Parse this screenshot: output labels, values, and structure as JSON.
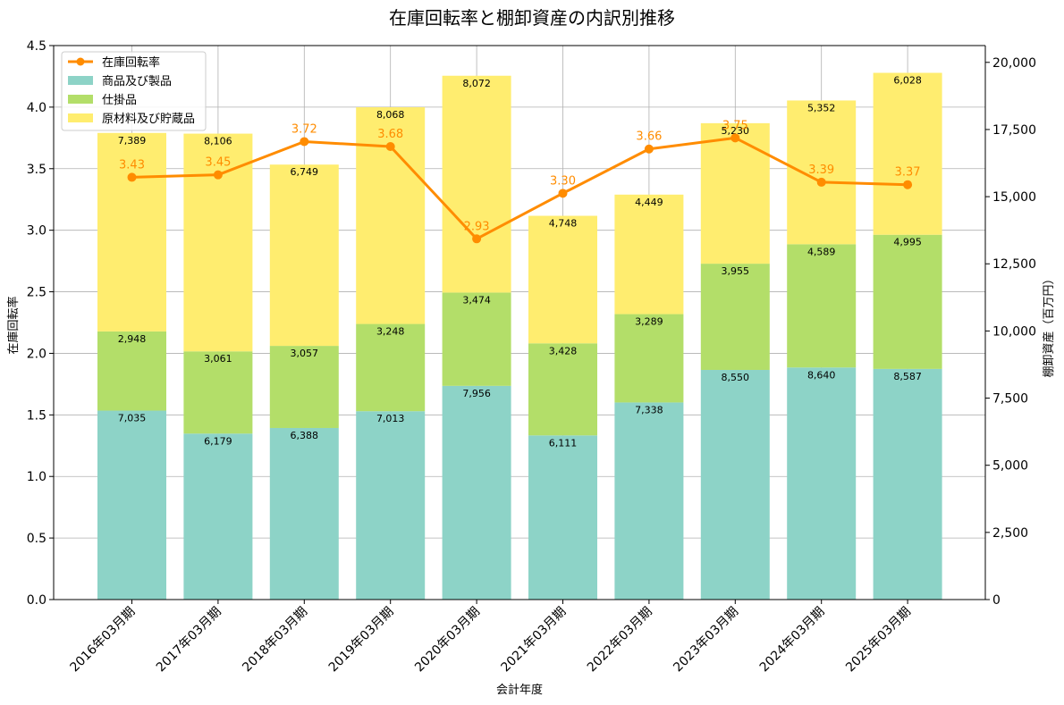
{
  "chart_data": {
    "type": "bar",
    "title": "在庫回転率と棚卸資産の内訳別推移",
    "xlabel": "会計年度",
    "ylabel_left": "在庫回転率",
    "ylabel_right": "棚卸資産（百万円）",
    "categories": [
      "2016年03月期",
      "2017年03月期",
      "2018年03月期",
      "2019年03月期",
      "2020年03月期",
      "2021年03月期",
      "2022年03月期",
      "2023年03月期",
      "2024年03月期",
      "2025年03月期"
    ],
    "left_axis": {
      "min": 0,
      "max": 4.5,
      "ticks": [
        "0.0",
        "0.5",
        "1.0",
        "1.5",
        "2.0",
        "2.5",
        "3.0",
        "3.5",
        "4.0",
        "4.5"
      ]
    },
    "right_axis": {
      "min": 0,
      "max": 20625,
      "ticks": [
        "0",
        "2,500",
        "5,000",
        "7,500",
        "10,000",
        "12,500",
        "15,000",
        "17,500",
        "20,000"
      ]
    },
    "grid": true,
    "legend_position": "top-left",
    "stacked_series": [
      {
        "name": "商品及び製品",
        "color": "#8dd3c7",
        "values": [
          7035,
          6179,
          6388,
          7013,
          7956,
          6111,
          7338,
          8550,
          8640,
          8587
        ],
        "labels": [
          "7,035",
          "6,179",
          "6,388",
          "7,013",
          "7,956",
          "6,111",
          "7,338",
          "8,550",
          "8,640",
          "8,587"
        ]
      },
      {
        "name": "仕掛品",
        "color": "#b3de69",
        "values": [
          2948,
          3061,
          3057,
          3248,
          3474,
          3428,
          3289,
          3955,
          4589,
          4995
        ],
        "labels": [
          "2,948",
          "3,061",
          "3,057",
          "3,248",
          "3,474",
          "3,428",
          "3,289",
          "3,955",
          "4,589",
          "4,995"
        ]
      },
      {
        "name": "原材料及び貯蔵品",
        "color": "#ffed6f",
        "values": [
          7389,
          8106,
          6749,
          8068,
          8072,
          4748,
          4449,
          5230,
          5352,
          6028
        ],
        "labels": [
          "7,389",
          "8,106",
          "6,749",
          "8,068",
          "8,072",
          "4,748",
          "4,449",
          "5,230",
          "5,352",
          "6,028"
        ]
      }
    ],
    "line_series": {
      "name": "在庫回転率",
      "color": "#ff8c00",
      "values": [
        3.43,
        3.45,
        3.72,
        3.68,
        2.93,
        3.3,
        3.66,
        3.75,
        3.39,
        3.37
      ],
      "labels": [
        "3.43",
        "3.45",
        "3.72",
        "3.68",
        "2.93",
        "3.30",
        "3.66",
        "3.75",
        "3.39",
        "3.37"
      ]
    }
  }
}
